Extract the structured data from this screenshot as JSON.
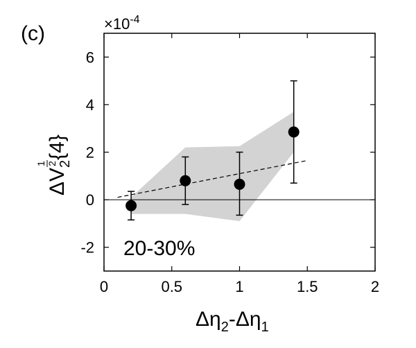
{
  "panel_label": "(c)",
  "chart_data": {
    "type": "scatter",
    "title": "",
    "xlabel": {
      "prefix": "Δη",
      "sub1": "2",
      "mid": "-Δη",
      "sub2": "1"
    },
    "ylabel": {
      "prefix": "ΔV",
      "sub": "2",
      "sup_num": "1",
      "sup_den": "2",
      "suffix": "{4}"
    },
    "y_multiplier": {
      "base": "×10",
      "exp": "-4"
    },
    "xlim": [
      0,
      2
    ],
    "ylim": [
      -3,
      7
    ],
    "xticks": [
      0,
      0.5,
      1,
      1.5,
      2
    ],
    "xtick_labels": [
      "0",
      "0.5",
      "1",
      "1.5",
      "2"
    ],
    "yticks": [
      -2,
      0,
      2,
      4,
      6
    ],
    "ytick_labels": [
      "-2",
      "0",
      "2",
      "4",
      "6"
    ],
    "annotation": "20-30%",
    "grid": false,
    "zero_line": true,
    "points": [
      {
        "x": 0.2,
        "y": -0.25,
        "y_low": -0.85,
        "y_high": 0.35
      },
      {
        "x": 0.6,
        "y": 0.8,
        "y_low": -0.2,
        "y_high": 1.8
      },
      {
        "x": 1.0,
        "y": 0.65,
        "y_low": -0.65,
        "y_high": 2.0
      },
      {
        "x": 1.4,
        "y": 2.85,
        "y_low": 0.7,
        "y_high": 5.0
      }
    ],
    "fit_line": {
      "x": [
        0.1,
        1.5
      ],
      "y": [
        0.1,
        1.65
      ],
      "style": "dashed"
    },
    "band": {
      "x": [
        0.2,
        0.6,
        1.0,
        1.4
      ],
      "upper": [
        0.1,
        2.2,
        2.25,
        3.7
      ],
      "lower": [
        -0.6,
        -0.6,
        -0.9,
        2.0
      ],
      "color": "#d3d3d3"
    },
    "marker_color": "#000000"
  }
}
